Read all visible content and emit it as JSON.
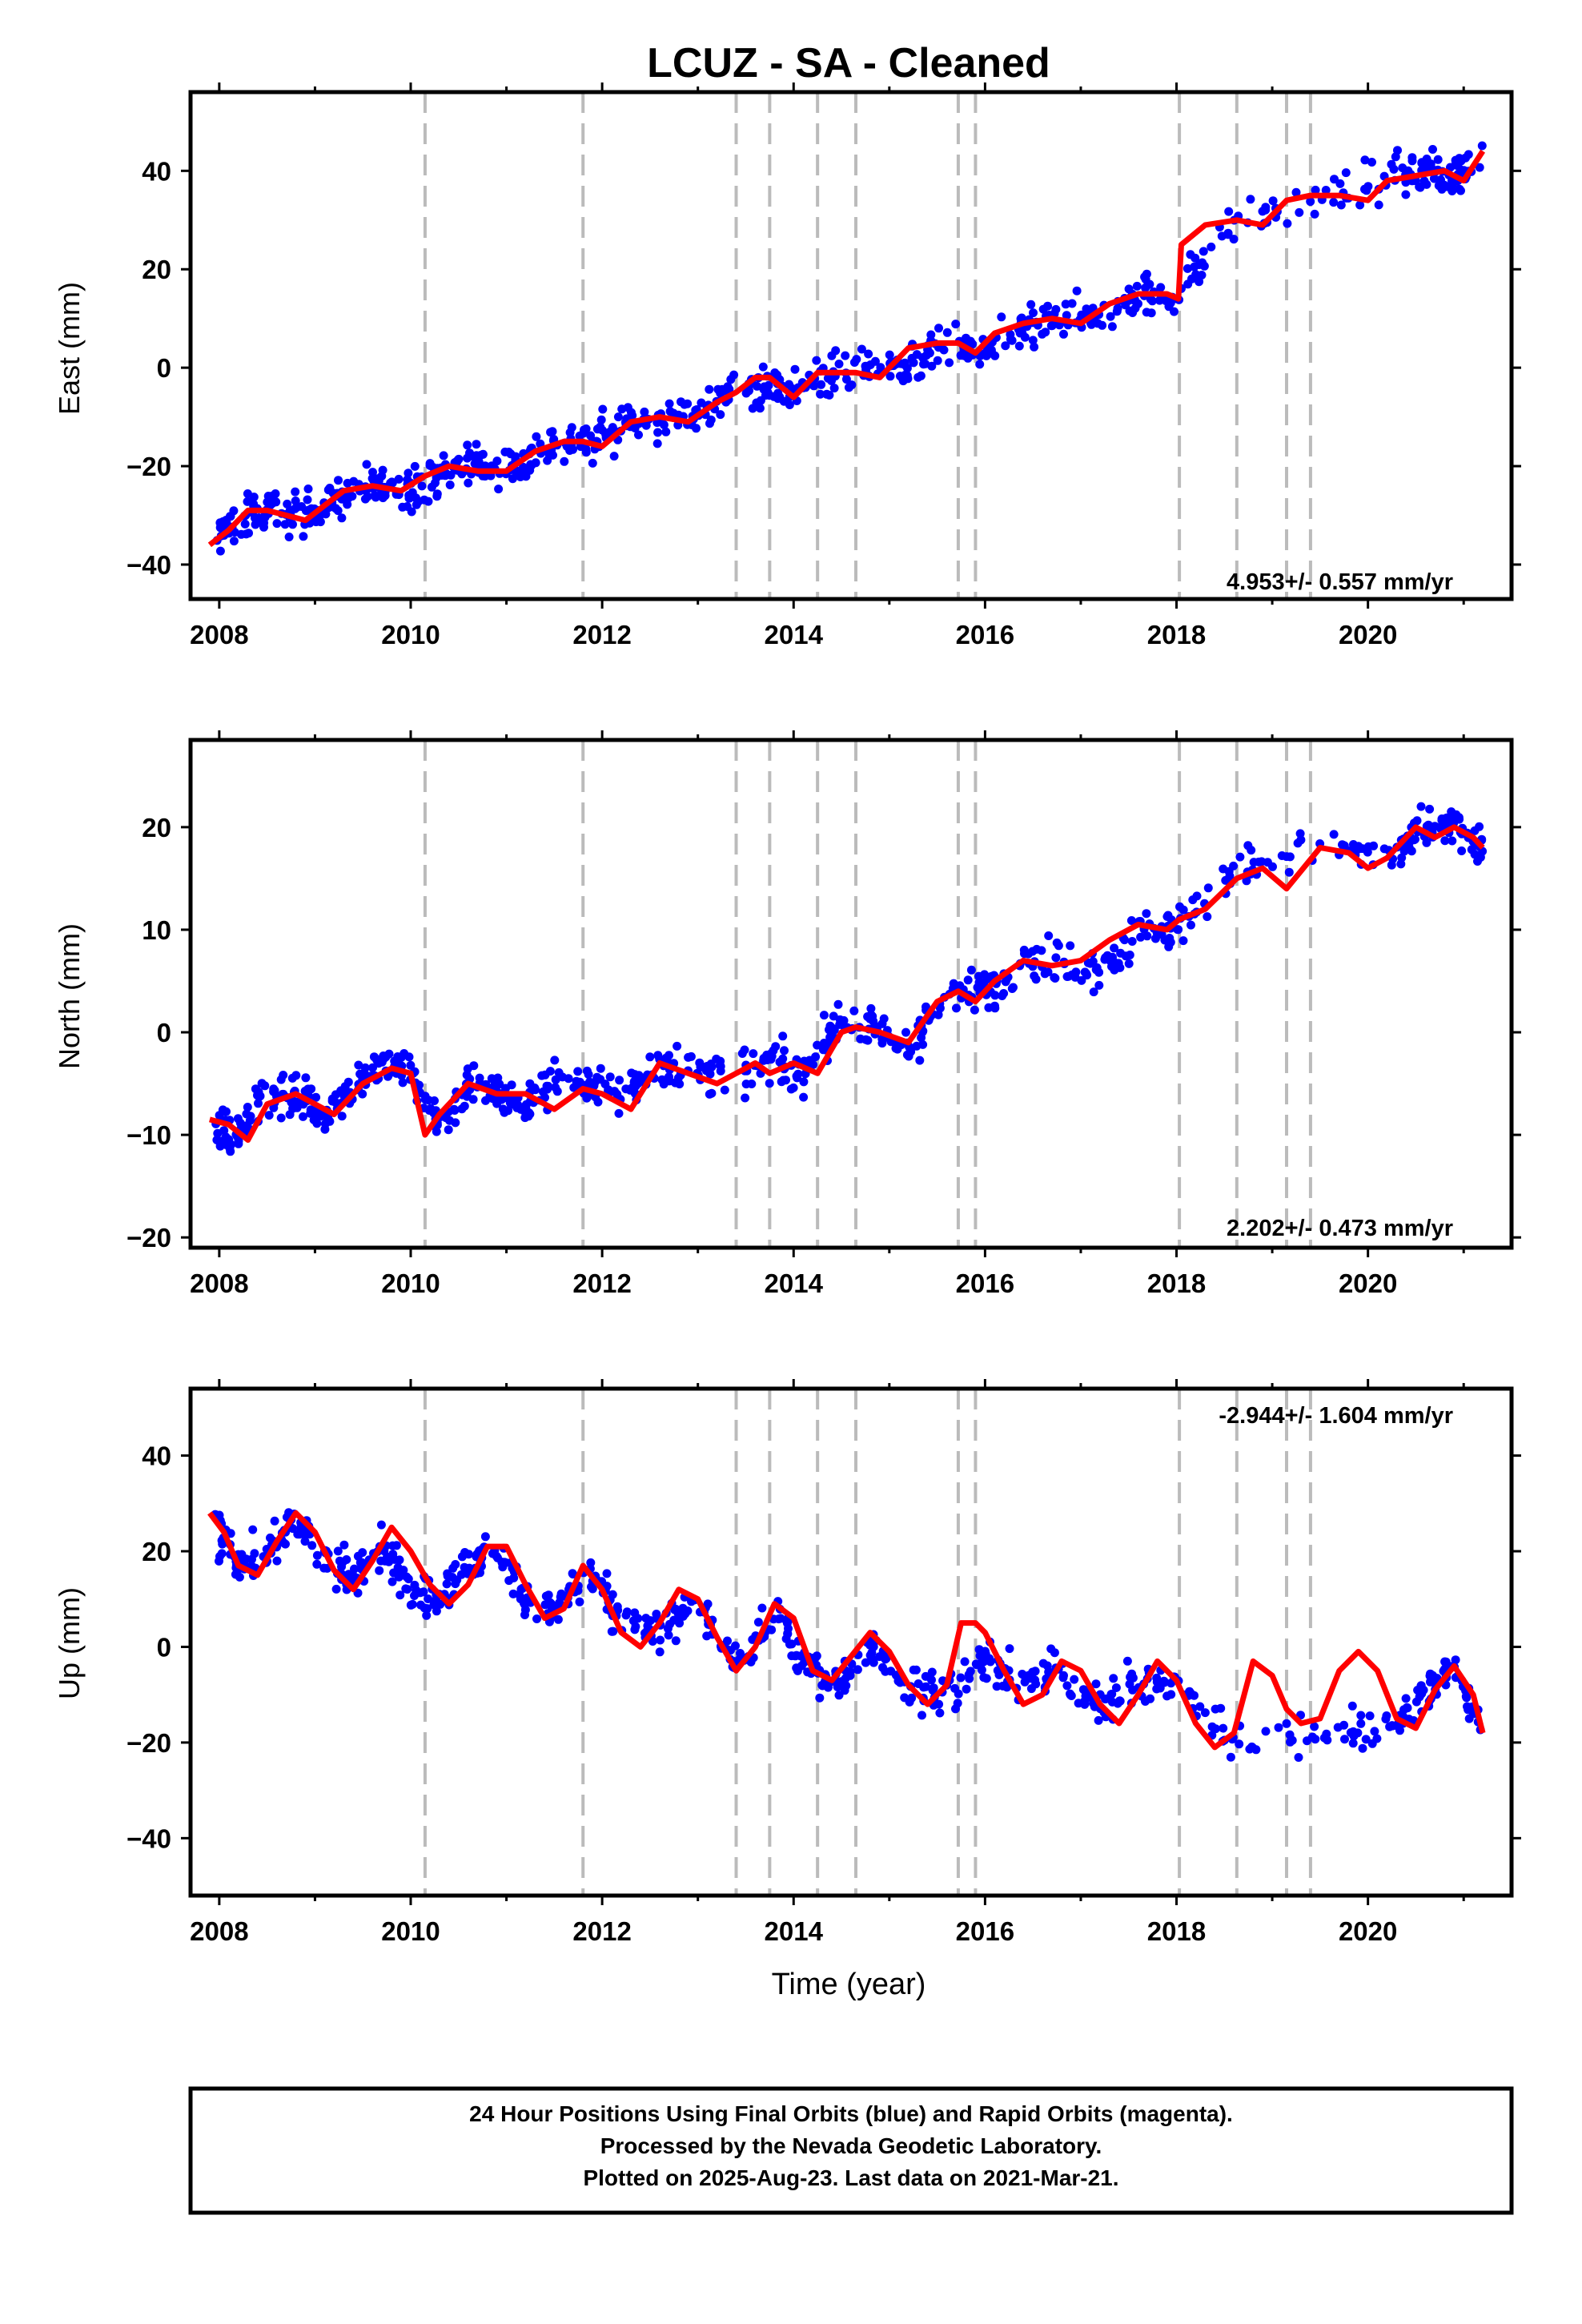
{
  "colors": {
    "data_points": "#0000ff",
    "model_line": "#ff0000",
    "offsets": "#bbbbbb",
    "frame": "#000000"
  },
  "chart_data": [
    {
      "type": "scatter",
      "title": "LCUZ  - SA - Cleaned",
      "xlabel": "",
      "ylabel": "East (mm)",
      "xlim": [
        2007.7,
        2021.5
      ],
      "ylim": [
        -47,
        56
      ],
      "xticks": [
        2008,
        2010,
        2012,
        2014,
        2016,
        2018,
        2020
      ],
      "yticks": [
        -40,
        -20,
        0,
        20,
        40
      ],
      "grid": false,
      "annotation": "4.953+/- 0.557 mm/yr",
      "annotation_position": "bottom-right",
      "offset_epochs": [
        2010.15,
        2011.8,
        2013.4,
        2013.75,
        2014.25,
        2014.65,
        2015.72,
        2015.9,
        2018.03,
        2018.63,
        2019.15,
        2019.4
      ],
      "series": [
        {
          "kind": "daily positions",
          "x": [
            2007.95,
            2008.2,
            2008.5,
            2008.8,
            2009.1,
            2009.4,
            2009.7,
            2010.0,
            2010.3,
            2010.6,
            2010.9,
            2011.2,
            2011.5,
            2011.9,
            2012.2,
            2012.6,
            2013.0,
            2013.4,
            2013.8,
            2014.1,
            2014.4,
            2014.8,
            2015.2,
            2015.6,
            2016.0,
            2016.4,
            2016.8,
            2017.2,
            2017.6,
            2018.0,
            2018.6,
            2019.6,
            2020.3,
            2020.6,
            2020.9,
            2021.2
          ],
          "values": [
            -35,
            -31,
            -29,
            -30,
            -28,
            -25,
            -24,
            -25,
            -21,
            -20,
            -20,
            -19,
            -15,
            -15,
            -12,
            -10,
            -9,
            -5,
            -3,
            -5,
            -1,
            0,
            0,
            4,
            3,
            8,
            10,
            11,
            15,
            15,
            29,
            35,
            39,
            40,
            39,
            43
          ]
        },
        {
          "kind": "model fit",
          "x": [
            2007.9,
            2008.1,
            2008.3,
            2008.5,
            2008.7,
            2008.9,
            2009.1,
            2009.3,
            2009.6,
            2009.9,
            2010.15,
            2010.4,
            2010.7,
            2011.0,
            2011.3,
            2011.6,
            2011.8,
            2012.0,
            2012.3,
            2012.6,
            2012.9,
            2013.2,
            2013.4,
            2013.6,
            2013.75,
            2014.0,
            2014.25,
            2014.5,
            2014.65,
            2014.9,
            2015.2,
            2015.5,
            2015.72,
            2015.9,
            2016.1,
            2016.4,
            2016.7,
            2017.0,
            2017.3,
            2017.6,
            2017.9,
            2018.02,
            2018.05,
            2018.3,
            2018.63,
            2018.9,
            2019.15,
            2019.4,
            2019.7,
            2020.0,
            2020.2,
            2020.5,
            2020.8,
            2021.0,
            2021.2
          ],
          "values": [
            -36,
            -33,
            -29,
            -29,
            -30,
            -31,
            -28,
            -25,
            -24,
            -25,
            -22,
            -20,
            -21,
            -21,
            -17,
            -15,
            -15,
            -16,
            -11,
            -10,
            -11,
            -7,
            -5,
            -2,
            -2,
            -6,
            -1,
            -1,
            -1,
            -2,
            4,
            5,
            5,
            3,
            7,
            9,
            10,
            9,
            13,
            15,
            15,
            14,
            25,
            29,
            30,
            29,
            34,
            35,
            35,
            34,
            38,
            39,
            40,
            38,
            44
          ]
        }
      ]
    },
    {
      "type": "scatter",
      "title": "",
      "xlabel": "",
      "ylabel": "North (mm)",
      "xlim": [
        2007.7,
        2021.5
      ],
      "ylim": [
        -21,
        28.5
      ],
      "xticks": [
        2008,
        2010,
        2012,
        2014,
        2016,
        2018,
        2020
      ],
      "yticks": [
        -20,
        -10,
        0,
        10,
        20
      ],
      "grid": false,
      "annotation": "2.202+/- 0.473 mm/yr",
      "annotation_position": "bottom-right",
      "offset_epochs": [
        2010.15,
        2011.8,
        2013.4,
        2013.75,
        2014.25,
        2014.65,
        2015.72,
        2015.9,
        2018.03,
        2018.63,
        2019.15,
        2019.4
      ],
      "series": [
        {
          "kind": "daily positions",
          "x": [
            2007.95,
            2008.2,
            2008.5,
            2008.8,
            2009.1,
            2009.4,
            2009.7,
            2010.0,
            2010.3,
            2010.6,
            2010.9,
            2011.2,
            2011.5,
            2011.9,
            2012.2,
            2012.6,
            2013.0,
            2013.4,
            2013.8,
            2014.1,
            2014.4,
            2014.8,
            2015.2,
            2015.6,
            2016.0,
            2016.4,
            2016.8,
            2017.2,
            2017.6,
            2018.0,
            2018.6,
            2019.6,
            2020.3,
            2020.6,
            2020.9,
            2021.2
          ],
          "values": [
            -9,
            -10,
            -6,
            -6,
            -8,
            -5,
            -3,
            -4,
            -9,
            -5,
            -6,
            -7,
            -5,
            -5,
            -6,
            -3,
            -4,
            -4,
            -3,
            -4,
            0,
            1,
            -2,
            4,
            4,
            7,
            7,
            6,
            10,
            10,
            16,
            18,
            17,
            20,
            20,
            18
          ]
        },
        {
          "kind": "model fit",
          "x": [
            2007.9,
            2008.1,
            2008.3,
            2008.5,
            2008.8,
            2009.0,
            2009.2,
            2009.5,
            2009.8,
            2010.0,
            2010.15,
            2010.3,
            2010.6,
            2010.9,
            2011.2,
            2011.5,
            2011.8,
            2012.0,
            2012.3,
            2012.6,
            2012.9,
            2013.2,
            2013.4,
            2013.6,
            2013.75,
            2014.0,
            2014.25,
            2014.5,
            2014.65,
            2014.9,
            2015.2,
            2015.5,
            2015.72,
            2015.9,
            2016.1,
            2016.4,
            2016.7,
            2017.0,
            2017.3,
            2017.6,
            2017.9,
            2018.03,
            2018.3,
            2018.63,
            2018.9,
            2019.15,
            2019.5,
            2019.8,
            2020.0,
            2020.2,
            2020.5,
            2020.7,
            2020.9,
            2021.1,
            2021.2
          ],
          "values": [
            -8.5,
            -9,
            -10.5,
            -7,
            -6,
            -7,
            -8,
            -5,
            -3.5,
            -4,
            -10,
            -8,
            -5,
            -6,
            -6,
            -7.5,
            -5.5,
            -6,
            -7.5,
            -3,
            -4,
            -5,
            -4,
            -3,
            -4,
            -3,
            -4,
            0,
            0.5,
            0,
            -1,
            3,
            4,
            3,
            5,
            7,
            6.5,
            7,
            9,
            10.5,
            10,
            11,
            12,
            15,
            16,
            14,
            18,
            17.5,
            16,
            17,
            20,
            19,
            20,
            19,
            18
          ]
        }
      ]
    },
    {
      "type": "scatter",
      "title": "",
      "xlabel": "Time (year)",
      "ylabel": "Up (mm)",
      "xlim": [
        2007.7,
        2021.5
      ],
      "ylim": [
        -52,
        54
      ],
      "xticks": [
        2008,
        2010,
        2012,
        2014,
        2016,
        2018,
        2020
      ],
      "yticks": [
        -40,
        -20,
        0,
        20,
        40
      ],
      "grid": false,
      "annotation": "-2.944+/- 1.604 mm/yr",
      "annotation_position": "top-right",
      "offset_epochs": [
        2010.15,
        2011.8,
        2013.4,
        2013.75,
        2014.25,
        2014.65,
        2015.72,
        2015.9,
        2018.03,
        2018.63,
        2019.15,
        2019.4
      ],
      "series": [
        {
          "kind": "daily positions",
          "x": [
            2007.95,
            2008.2,
            2008.5,
            2008.8,
            2009.1,
            2009.4,
            2009.7,
            2010.0,
            2010.3,
            2010.6,
            2010.9,
            2011.2,
            2011.5,
            2011.9,
            2012.2,
            2012.6,
            2013.0,
            2013.4,
            2013.8,
            2014.1,
            2014.4,
            2014.8,
            2015.2,
            2015.6,
            2016.0,
            2016.4,
            2016.8,
            2017.2,
            2017.6,
            2018.0,
            2018.6,
            2019.6,
            2020.3,
            2020.6,
            2020.9,
            2021.2
          ],
          "values": [
            25,
            17,
            20,
            26,
            18,
            14,
            22,
            12,
            10,
            17,
            20,
            10,
            8,
            16,
            5,
            3,
            10,
            -5,
            8,
            -3,
            -8,
            0,
            -8,
            -10,
            -3,
            -8,
            -5,
            -12,
            -8,
            -8,
            -20,
            -18,
            -15,
            -10,
            -3,
            -18
          ]
        },
        {
          "kind": "model fit",
          "x": [
            2007.9,
            2008.05,
            2008.2,
            2008.4,
            2008.6,
            2008.8,
            2009.0,
            2009.2,
            2009.4,
            2009.6,
            2009.8,
            2010.0,
            2010.2,
            2010.4,
            2010.6,
            2010.8,
            2011.0,
            2011.2,
            2011.4,
            2011.6,
            2011.8,
            2012.0,
            2012.2,
            2012.4,
            2012.6,
            2012.8,
            2013.0,
            2013.2,
            2013.4,
            2013.6,
            2013.8,
            2014.0,
            2014.2,
            2014.4,
            2014.6,
            2014.8,
            2015.0,
            2015.2,
            2015.4,
            2015.6,
            2015.75,
            2015.9,
            2016.0,
            2016.2,
            2016.4,
            2016.6,
            2016.8,
            2017.0,
            2017.2,
            2017.4,
            2017.6,
            2017.8,
            2018.0,
            2018.2,
            2018.4,
            2018.6,
            2018.8,
            2019.0,
            2019.15,
            2019.3,
            2019.5,
            2019.7,
            2019.9,
            2020.1,
            2020.3,
            2020.5,
            2020.7,
            2020.9,
            2021.1,
            2021.2
          ],
          "values": [
            28,
            24,
            17,
            15,
            22,
            28,
            24,
            16,
            12,
            18,
            25,
            20,
            13,
            9,
            13,
            21,
            21,
            13,
            6,
            8,
            17,
            12,
            3,
            0,
            5,
            12,
            10,
            2,
            -5,
            0,
            9,
            6,
            -5,
            -7,
            -2,
            3,
            -1,
            -8,
            -12,
            -8,
            5,
            5,
            3,
            -5,
            -12,
            -10,
            -3,
            -5,
            -12,
            -16,
            -10,
            -3,
            -7,
            -16,
            -21,
            -18,
            -3,
            -6,
            -13,
            -16,
            -15,
            -5,
            -1,
            -5,
            -15,
            -17,
            -9,
            -4,
            -10,
            -18
          ]
        }
      ]
    }
  ],
  "footer": {
    "line1": "24 Hour Positions Using Final Orbits (blue) and Rapid Orbits (magenta).",
    "line2": "Processed by the Nevada Geodetic Laboratory.",
    "line3": "Plotted on 2025-Aug-23. Last data on 2021-Mar-21."
  }
}
